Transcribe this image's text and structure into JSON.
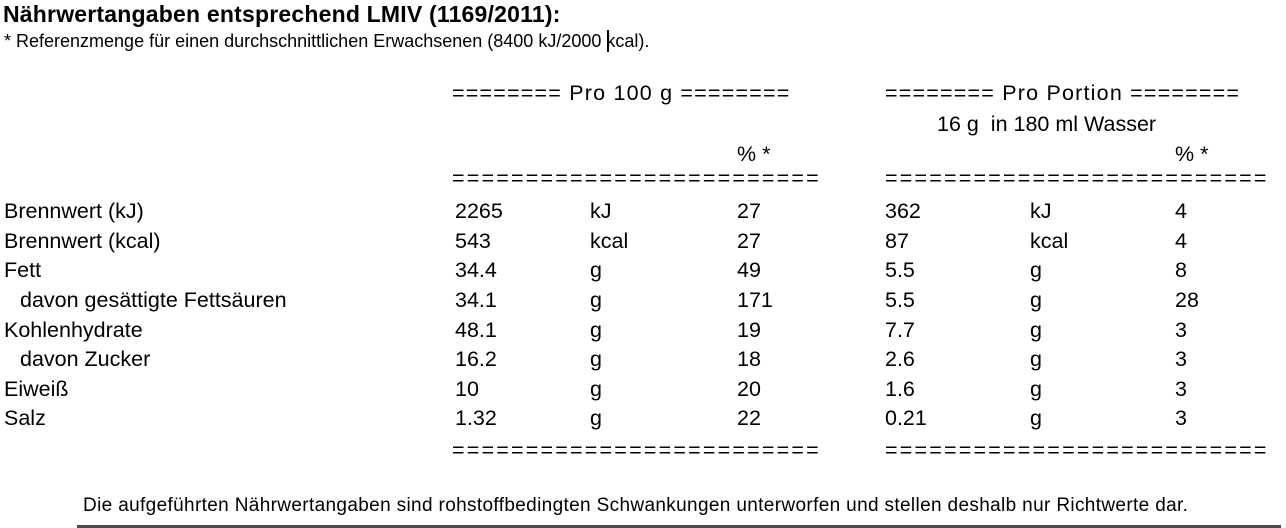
{
  "title": "Nährwertangaben entsprechend LMIV (1169/2011):",
  "reference_note": "* Referenzmenge für einen durchschnittlichen Erwachsenen (8400 kJ/2000 kcal).",
  "table": {
    "header_100g": "======== Pro 100 g ========",
    "header_portion": "======== Pro Portion ========",
    "portion_subheader": "16 g  in 180 ml Wasser",
    "percent_label": "% *",
    "separator_100g": "=========================",
    "separator_portion": "==========================",
    "rows": [
      {
        "label": "Brennwert (kJ)",
        "indent": false,
        "per100": {
          "value": "2265",
          "unit": "kJ",
          "percent": "27"
        },
        "portion": {
          "value": "362",
          "unit": "kJ",
          "percent": "4"
        }
      },
      {
        "label": "Brennwert (kcal)",
        "indent": false,
        "per100": {
          "value": "543",
          "unit": "kcal",
          "percent": "27"
        },
        "portion": {
          "value": "87",
          "unit": "kcal",
          "percent": "4"
        }
      },
      {
        "label": "Fett",
        "indent": false,
        "per100": {
          "value": "34.4",
          "unit": "g",
          "percent": "49"
        },
        "portion": {
          "value": "5.5",
          "unit": "g",
          "percent": "8"
        }
      },
      {
        "label": "davon gesättigte Fettsäuren",
        "indent": true,
        "per100": {
          "value": "34.1",
          "unit": "g",
          "percent": "171"
        },
        "portion": {
          "value": "5.5",
          "unit": "g",
          "percent": "28"
        }
      },
      {
        "label": "Kohlenhydrate",
        "indent": false,
        "per100": {
          "value": "48.1",
          "unit": "g",
          "percent": "19"
        },
        "portion": {
          "value": "7.7",
          "unit": "g",
          "percent": "3"
        }
      },
      {
        "label": "davon Zucker",
        "indent": true,
        "per100": {
          "value": "16.2",
          "unit": "g",
          "percent": "18"
        },
        "portion": {
          "value": "2.6",
          "unit": "g",
          "percent": "3"
        }
      },
      {
        "label": "Eiweiß",
        "indent": false,
        "per100": {
          "value": "10",
          "unit": "g",
          "percent": "20"
        },
        "portion": {
          "value": "1.6",
          "unit": "g",
          "percent": "3"
        }
      },
      {
        "label": "Salz",
        "indent": false,
        "per100": {
          "value": "1.32",
          "unit": "g",
          "percent": "22"
        },
        "portion": {
          "value": "0.21",
          "unit": "g",
          "percent": "3"
        }
      }
    ]
  },
  "footer": {
    "note": "Die aufgeführten Nährwertangaben sind rohstoffbedingten Schwankungen unterworfen und stellen deshalb nur Richtwerte dar."
  },
  "colors": {
    "text": "#000000",
    "background": "#ffffff"
  }
}
